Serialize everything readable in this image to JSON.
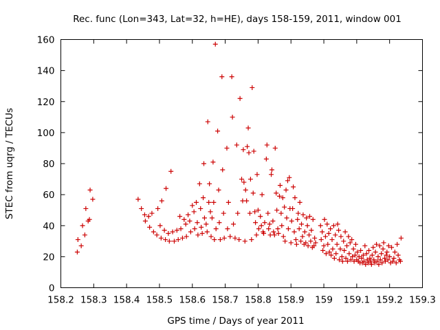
{
  "chart_data": {
    "type": "scatter",
    "title": "Rec. func (Lon=343, Lat=32, h=HE), days 158-159, 2011, window 001",
    "xlabel": "GPS time / Days of year 2011",
    "ylabel": "STEC from uqrg / TECUs",
    "xlim": [
      158.2,
      159.3
    ],
    "ylim": [
      0,
      160
    ],
    "xticks": [
      "158.2",
      "158.3",
      "158.4",
      "158.5",
      "158.6",
      "158.7",
      "158.8",
      "158.9",
      "159",
      "159.1",
      "159.2",
      "159.3"
    ],
    "yticks": [
      "0",
      "20",
      "40",
      "60",
      "80",
      "100",
      "120",
      "140",
      "160"
    ],
    "grid": false,
    "legend": "none",
    "marker": "plus",
    "color": "#cc0000",
    "points": [
      [
        158.25,
        23
      ],
      [
        158.252,
        31
      ],
      [
        158.262,
        27
      ],
      [
        158.266,
        40
      ],
      [
        158.273,
        34
      ],
      [
        158.276,
        51
      ],
      [
        158.283,
        43
      ],
      [
        158.287,
        44
      ],
      [
        158.289,
        63
      ],
      [
        158.297,
        57
      ],
      [
        158.435,
        57
      ],
      [
        158.445,
        51
      ],
      [
        158.455,
        47
      ],
      [
        158.457,
        43
      ],
      [
        158.467,
        46
      ],
      [
        158.47,
        39
      ],
      [
        158.477,
        48
      ],
      [
        158.482,
        36
      ],
      [
        158.492,
        34
      ],
      [
        158.495,
        51
      ],
      [
        158.502,
        40
      ],
      [
        158.505,
        32
      ],
      [
        158.507,
        56
      ],
      [
        158.515,
        37
      ],
      [
        158.518,
        31
      ],
      [
        158.52,
        64
      ],
      [
        158.527,
        35
      ],
      [
        158.53,
        30
      ],
      [
        158.535,
        75
      ],
      [
        158.54,
        36
      ],
      [
        158.545,
        30
      ],
      [
        158.553,
        37
      ],
      [
        158.557,
        31
      ],
      [
        158.562,
        46
      ],
      [
        158.565,
        38
      ],
      [
        158.57,
        32
      ],
      [
        158.575,
        44
      ],
      [
        158.58,
        41
      ],
      [
        158.582,
        33
      ],
      [
        158.587,
        47
      ],
      [
        158.592,
        43
      ],
      [
        158.595,
        36
      ],
      [
        158.6,
        53
      ],
      [
        158.605,
        49
      ],
      [
        158.607,
        38
      ],
      [
        158.612,
        55
      ],
      [
        158.615,
        42
      ],
      [
        158.617,
        34
      ],
      [
        158.622,
        67
      ],
      [
        158.625,
        51
      ],
      [
        158.627,
        39
      ],
      [
        158.63,
        35
      ],
      [
        158.633,
        58
      ],
      [
        158.635,
        80
      ],
      [
        158.637,
        45
      ],
      [
        158.642,
        41
      ],
      [
        158.645,
        36
      ],
      [
        158.647,
        107
      ],
      [
        158.65,
        55
      ],
      [
        158.652,
        67
      ],
      [
        158.655,
        49
      ],
      [
        158.657,
        33
      ],
      [
        158.66,
        45
      ],
      [
        158.663,
        81
      ],
      [
        158.665,
        55
      ],
      [
        158.667,
        31
      ],
      [
        158.67,
        157
      ],
      [
        158.672,
        38
      ],
      [
        158.677,
        101
      ],
      [
        158.68,
        63
      ],
      [
        158.682,
        42
      ],
      [
        158.685,
        31
      ],
      [
        158.69,
        136
      ],
      [
        158.692,
        76
      ],
      [
        158.695,
        48
      ],
      [
        158.697,
        32
      ],
      [
        158.705,
        90
      ],
      [
        158.707,
        38
      ],
      [
        158.71,
        55
      ],
      [
        158.715,
        33
      ],
      [
        158.72,
        136
      ],
      [
        158.722,
        110
      ],
      [
        158.725,
        41
      ],
      [
        158.73,
        32
      ],
      [
        158.735,
        92
      ],
      [
        158.738,
        48
      ],
      [
        158.742,
        31
      ],
      [
        158.745,
        122
      ],
      [
        158.75,
        70
      ],
      [
        158.753,
        56
      ],
      [
        158.755,
        89
      ],
      [
        158.757,
        68
      ],
      [
        158.76,
        30
      ],
      [
        158.762,
        63
      ],
      [
        158.765,
        56
      ],
      [
        158.767,
        91
      ],
      [
        158.77,
        103
      ],
      [
        158.772,
        87
      ],
      [
        158.775,
        48
      ],
      [
        158.777,
        70
      ],
      [
        158.78,
        31
      ],
      [
        158.782,
        129
      ],
      [
        158.785,
        61
      ],
      [
        158.787,
        88
      ],
      [
        158.79,
        49
      ],
      [
        158.792,
        42
      ],
      [
        158.795,
        34
      ],
      [
        158.797,
        73
      ],
      [
        158.8,
        50
      ],
      [
        158.802,
        38
      ],
      [
        158.807,
        46
      ],
      [
        158.81,
        40
      ],
      [
        158.812,
        60
      ],
      [
        158.815,
        36
      ],
      [
        158.817,
        35
      ],
      [
        158.82,
        42
      ],
      [
        158.825,
        83
      ],
      [
        158.827,
        92
      ],
      [
        158.83,
        48
      ],
      [
        158.832,
        38
      ],
      [
        158.835,
        41
      ],
      [
        158.837,
        34
      ],
      [
        158.84,
        73
      ],
      [
        158.842,
        76
      ],
      [
        158.845,
        43
      ],
      [
        158.847,
        36
      ],
      [
        158.85,
        34
      ],
      [
        158.852,
        90
      ],
      [
        158.855,
        61
      ],
      [
        158.857,
        50
      ],
      [
        158.86,
        38
      ],
      [
        158.862,
        35
      ],
      [
        158.865,
        59
      ],
      [
        158.867,
        66
      ],
      [
        158.87,
        48
      ],
      [
        158.872,
        40
      ],
      [
        158.875,
        58
      ],
      [
        158.877,
        33
      ],
      [
        158.88,
        52
      ],
      [
        158.882,
        30
      ],
      [
        158.885,
        63
      ],
      [
        158.887,
        45
      ],
      [
        158.89,
        69
      ],
      [
        158.892,
        38
      ],
      [
        158.895,
        71
      ],
      [
        158.897,
        51
      ],
      [
        158.9,
        29
      ],
      [
        158.902,
        43
      ],
      [
        158.905,
        51
      ],
      [
        158.907,
        65
      ],
      [
        158.91,
        36
      ],
      [
        158.912,
        58
      ],
      [
        158.915,
        31
      ],
      [
        158.917,
        28
      ],
      [
        158.92,
        44
      ],
      [
        158.922,
        48
      ],
      [
        158.925,
        38
      ],
      [
        158.927,
        55
      ],
      [
        158.93,
        30
      ],
      [
        158.932,
        41
      ],
      [
        158.935,
        33
      ],
      [
        158.937,
        47
      ],
      [
        158.94,
        28
      ],
      [
        158.942,
        36
      ],
      [
        158.945,
        29
      ],
      [
        158.947,
        45
      ],
      [
        158.95,
        40
      ],
      [
        158.952,
        27
      ],
      [
        158.955,
        34
      ],
      [
        158.957,
        46
      ],
      [
        158.96,
        30
      ],
      [
        158.962,
        37
      ],
      [
        158.965,
        26
      ],
      [
        158.967,
        44
      ],
      [
        158.97,
        27
      ],
      [
        158.972,
        32
      ],
      [
        158.975,
        29
      ],
      [
        158.99,
        40
      ],
      [
        158.992,
        31
      ],
      [
        158.995,
        36
      ],
      [
        158.997,
        24
      ],
      [
        159.0,
        27
      ],
      [
        159.002,
        44
      ],
      [
        159.005,
        33
      ],
      [
        159.007,
        22
      ],
      [
        159.01,
        41
      ],
      [
        159.012,
        28
      ],
      [
        159.015,
        35
      ],
      [
        159.017,
        23
      ],
      [
        159.02,
        38
      ],
      [
        159.022,
        21
      ],
      [
        159.025,
        31
      ],
      [
        159.027,
        25
      ],
      [
        159.03,
        40
      ],
      [
        159.032,
        19
      ],
      [
        159.035,
        34
      ],
      [
        159.037,
        22
      ],
      [
        159.04,
        28
      ],
      [
        159.042,
        41
      ],
      [
        159.045,
        37
      ],
      [
        159.047,
        18
      ],
      [
        159.05,
        25
      ],
      [
        159.052,
        33
      ],
      [
        159.055,
        20
      ],
      [
        159.057,
        17
      ],
      [
        159.06,
        30
      ],
      [
        159.062,
        24
      ],
      [
        159.065,
        36
      ],
      [
        159.067,
        19
      ],
      [
        159.07,
        27
      ],
      [
        159.072,
        17
      ],
      [
        159.075,
        33
      ],
      [
        159.077,
        22
      ],
      [
        159.08,
        29
      ],
      [
        159.082,
        18
      ],
      [
        159.085,
        31
      ],
      [
        159.087,
        20
      ],
      [
        159.09,
        25
      ],
      [
        159.092,
        17
      ],
      [
        159.095,
        21
      ],
      [
        159.097,
        28
      ],
      [
        159.1,
        18
      ],
      [
        159.102,
        23
      ],
      [
        159.105,
        17
      ],
      [
        159.107,
        20
      ],
      [
        159.11,
        16
      ],
      [
        159.112,
        24
      ],
      [
        159.115,
        19
      ],
      [
        159.117,
        16
      ],
      [
        159.12,
        21
      ],
      [
        159.122,
        17
      ],
      [
        159.125,
        27
      ],
      [
        159.127,
        15
      ],
      [
        159.13,
        22
      ],
      [
        159.132,
        18
      ],
      [
        159.135,
        16
      ],
      [
        159.137,
        24
      ],
      [
        159.14,
        19
      ],
      [
        159.142,
        17
      ],
      [
        159.145,
        15
      ],
      [
        159.147,
        21
      ],
      [
        159.15,
        26
      ],
      [
        159.152,
        18
      ],
      [
        159.155,
        16
      ],
      [
        159.157,
        23
      ],
      [
        159.16,
        28
      ],
      [
        159.162,
        17
      ],
      [
        159.165,
        20
      ],
      [
        159.167,
        15
      ],
      [
        159.17,
        27
      ],
      [
        159.172,
        18
      ],
      [
        159.175,
        22
      ],
      [
        159.177,
        16
      ],
      [
        159.18,
        25
      ],
      [
        159.182,
        29
      ],
      [
        159.185,
        19
      ],
      [
        159.187,
        17
      ],
      [
        159.19,
        21
      ],
      [
        159.192,
        23
      ],
      [
        159.195,
        18
      ],
      [
        159.197,
        27
      ],
      [
        159.2,
        20
      ],
      [
        159.203,
        16
      ],
      [
        159.206,
        26
      ],
      [
        159.21,
        17
      ],
      [
        159.213,
        19
      ],
      [
        159.216,
        23
      ],
      [
        159.22,
        16
      ],
      [
        159.223,
        28
      ],
      [
        159.226,
        21
      ],
      [
        159.23,
        18
      ],
      [
        159.233,
        17
      ],
      [
        159.235,
        32
      ]
    ]
  }
}
